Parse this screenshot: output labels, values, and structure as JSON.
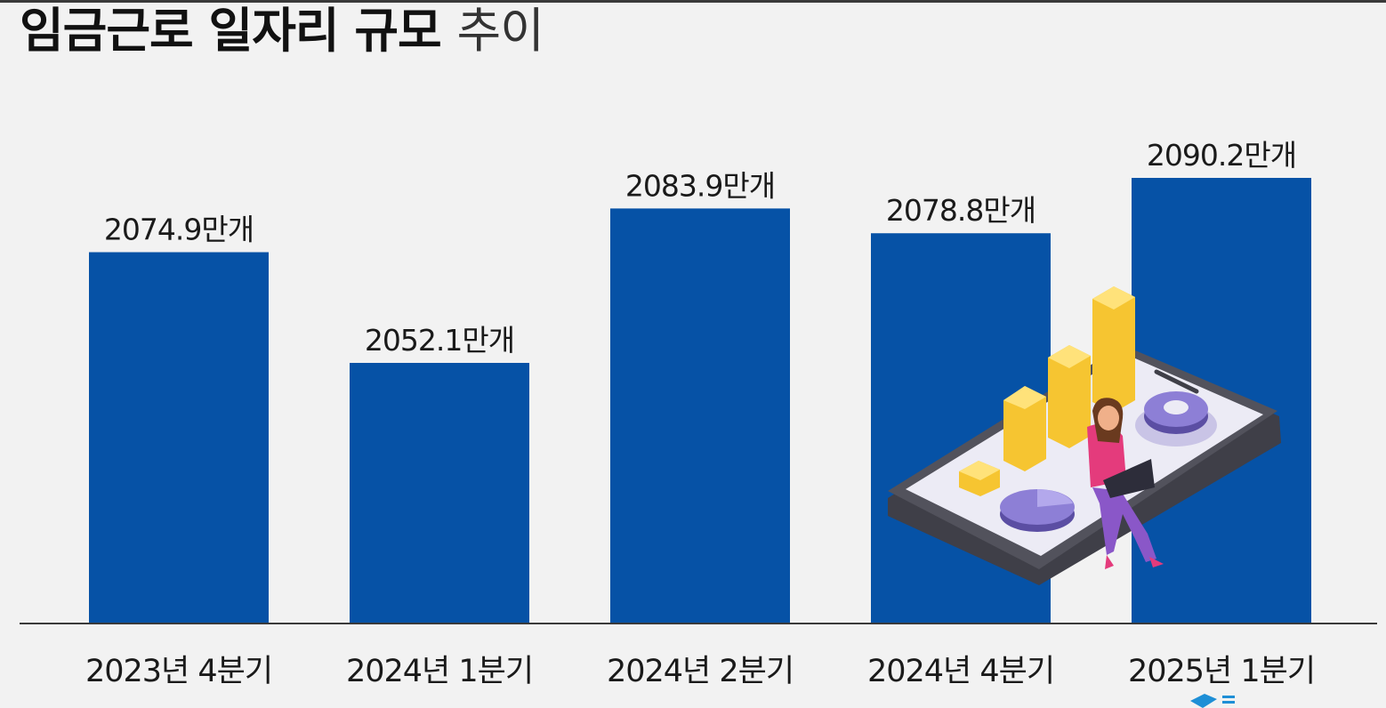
{
  "title_bold": "임금근로 일자리 규모",
  "title_light": "추이",
  "chart_data": {
    "type": "bar",
    "categories": [
      "2023년 4분기",
      "2024년 1분기",
      "2024년 2분기",
      "2024년 4분기",
      "2025년 1분기"
    ],
    "values": [
      2074.9,
      2052.1,
      2083.9,
      2078.8,
      2090.2
    ],
    "value_labels": [
      "2074.9만개",
      "2052.1만개",
      "2083.9만개",
      "2078.8만개",
      "2090.2만개"
    ],
    "title": "임금근로 일자리 규모 추이",
    "xlabel": "",
    "ylabel": "",
    "bar_color": "#0652a6",
    "grid": false,
    "legend": "none"
  },
  "decoration": {
    "illustration": "person-with-laptop-on-smartphone-with-3d-charts",
    "logo": "publisher-logo"
  }
}
